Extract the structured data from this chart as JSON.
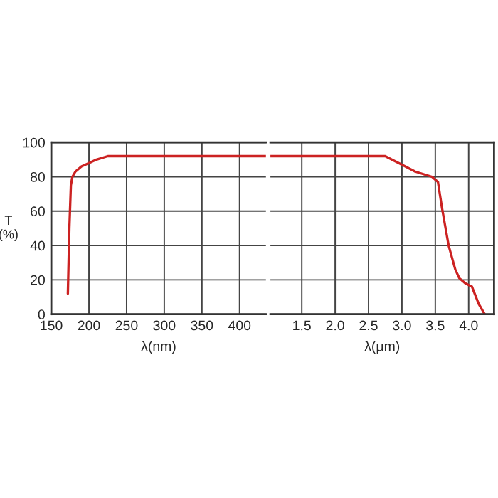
{
  "chart_data": [
    {
      "type": "line",
      "xlabel": "λ(nm)",
      "ylabel": "T\n(%)",
      "xlim": [
        150,
        435
      ],
      "xticks": [
        150,
        200,
        250,
        300,
        350,
        400
      ],
      "ylim": [
        0,
        100
      ],
      "yticks": [
        0,
        20,
        40,
        60,
        80,
        100
      ],
      "grid": true,
      "line_style": "solid",
      "series": [
        {
          "color": "#cc2222",
          "x": [
            172,
            174,
            176,
            178,
            182,
            190,
            200,
            210,
            225,
            300,
            435
          ],
          "values": [
            12,
            50,
            75,
            80,
            83,
            86,
            88,
            90,
            92,
            92,
            92
          ]
        }
      ]
    },
    {
      "type": "line",
      "xlabel": "λ(μm)",
      "xlim": [
        1.03,
        4.38
      ],
      "xticks": [
        1.5,
        {
          "value": 2,
          "label": "2.0"
        },
        2.5,
        {
          "value": 3,
          "label": "3.0"
        },
        3.5,
        {
          "value": 4,
          "label": "4.0"
        }
      ],
      "ylim": [
        0,
        100
      ],
      "yticks": [
        0,
        20,
        40,
        60,
        80,
        100
      ],
      "tick_labels": "x",
      "grid": true,
      "line_style": "solid",
      "series": [
        {
          "color": "#cc2222",
          "x": [
            1.03,
            2.75,
            2.9,
            3.0,
            3.2,
            3.45,
            3.54,
            3.6,
            3.7,
            3.8,
            3.86,
            3.95,
            4.05,
            4.15,
            4.24
          ],
          "values": [
            92,
            92,
            89,
            87,
            83,
            80,
            77,
            62,
            40,
            26,
            21,
            18,
            16,
            6,
            0
          ]
        }
      ]
    }
  ]
}
